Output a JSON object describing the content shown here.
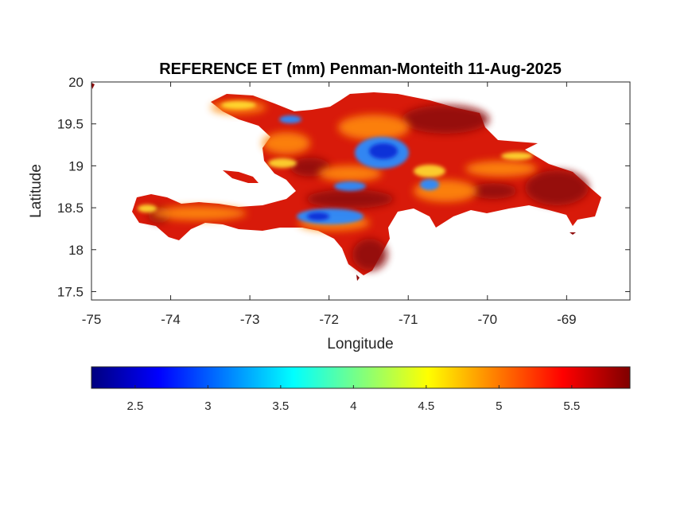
{
  "map": {
    "title": "REFERENCE ET (mm) Penman-Monteith 11-Aug-2025",
    "xlabel": "Longitude",
    "ylabel": "Latitude",
    "xlim": [
      -75,
      -68.2
    ],
    "ylim": [
      17.4,
      20
    ],
    "xticks": [
      -75,
      -74,
      -73,
      -72,
      -71,
      -70,
      -69
    ],
    "yticks": [
      17.5,
      18,
      18.5,
      19,
      19.5,
      20
    ],
    "xtick_labels": [
      "-75",
      "-74",
      "-73",
      "-72",
      "-71",
      "-70",
      "-69"
    ],
    "ytick_labels": [
      "17.5",
      "18",
      "18.5",
      "19",
      "19.5",
      "20"
    ],
    "colormap": "jet",
    "colorbar": {
      "range": [
        2.2,
        5.9
      ],
      "ticks": [
        2.5,
        3,
        3.5,
        4,
        4.5,
        5,
        5.5
      ],
      "tick_labels": [
        "2.5",
        "3",
        "3.5",
        "4",
        "4.5",
        "5",
        "5.5"
      ],
      "colors": [
        "#00007f",
        "#0000ff",
        "#007fff",
        "#00ffff",
        "#7fff7f",
        "#ffff00",
        "#ff7f00",
        "#ff0000",
        "#7f0000"
      ]
    },
    "colors": {
      "land_base": "#d81a0a",
      "high_zone": "#8f0a0a",
      "mid_zone": "#ff8a10",
      "low_zone": "#2a8cff",
      "min_zone": "#1030d8",
      "axes": "#262626",
      "background": "#ffffff"
    }
  }
}
